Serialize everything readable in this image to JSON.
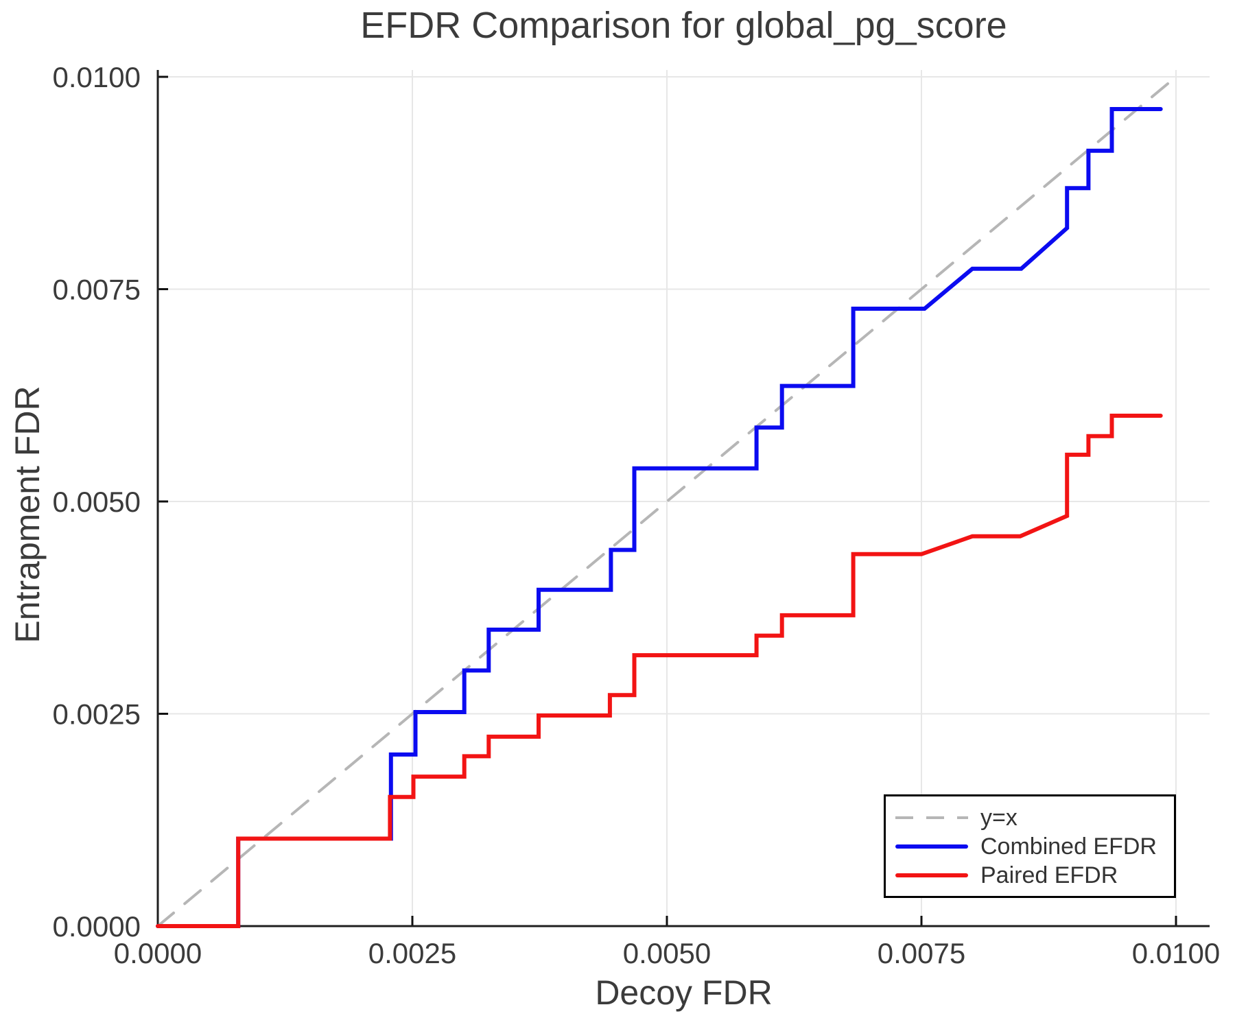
{
  "chart_data": {
    "type": "line",
    "title": "EFDR Comparison for global_pg_score",
    "xlabel": "Decoy FDR",
    "ylabel": "Entrapment FDR",
    "xlim": [
      0,
      0.01033
    ],
    "ylim": [
      0,
      0.01011
    ],
    "xticks": [
      0.0,
      0.0025,
      0.005,
      0.0075,
      0.01
    ],
    "yticks": [
      0.0,
      0.0025,
      0.005,
      0.0075,
      0.01
    ],
    "xtick_labels": [
      "0.0000",
      "0.0025",
      "0.0050",
      "0.0075",
      "0.0100"
    ],
    "ytick_labels": [
      "0.0000",
      "0.0025",
      "0.0050",
      "0.0075",
      "0.0100"
    ],
    "grid": true,
    "legend_position": "bottom-right",
    "colors": {
      "grid": "#e7e7e7",
      "spine": "#1f1f1f",
      "tick": "#111111",
      "text": "#3b3b3b"
    },
    "series": [
      {
        "name": "y=x",
        "role": "reference-line",
        "line_style": "dashed",
        "color": "#b6b6b6",
        "width": 4,
        "points": [
          [
            0,
            0
          ],
          [
            0.01,
            0.01
          ]
        ]
      },
      {
        "name": "Combined EFDR",
        "role": "data",
        "line_style": "solid",
        "color": "#0b0bf0",
        "width": 6,
        "points": [
          [
            0,
            0
          ],
          [
            0.00079,
            0
          ],
          [
            0.00079,
            0.00103
          ],
          [
            0.00229,
            0.00103
          ],
          [
            0.00229,
            0.00202
          ],
          [
            0.00253,
            0.00202
          ],
          [
            0.00253,
            0.00252
          ],
          [
            0.00301,
            0.00252
          ],
          [
            0.00301,
            0.00301
          ],
          [
            0.00325,
            0.00301
          ],
          [
            0.00325,
            0.00349
          ],
          [
            0.00374,
            0.00349
          ],
          [
            0.00374,
            0.00396
          ],
          [
            0.00445,
            0.00396
          ],
          [
            0.00445,
            0.00443
          ],
          [
            0.00468,
            0.00443
          ],
          [
            0.00468,
            0.00539
          ],
          [
            0.00588,
            0.00539
          ],
          [
            0.00588,
            0.00587
          ],
          [
            0.00613,
            0.00587
          ],
          [
            0.00613,
            0.00636
          ],
          [
            0.00683,
            0.00636
          ],
          [
            0.00683,
            0.00727
          ],
          [
            0.00753,
            0.00727
          ],
          [
            0.008,
            0.00774
          ],
          [
            0.00848,
            0.00774
          ],
          [
            0.00893,
            0.00822
          ],
          [
            0.00893,
            0.00869
          ],
          [
            0.00914,
            0.00869
          ],
          [
            0.00914,
            0.00913
          ],
          [
            0.00937,
            0.00913
          ],
          [
            0.00937,
            0.00962
          ],
          [
            0.00985,
            0.00962
          ]
        ]
      },
      {
        "name": "Paired EFDR",
        "role": "data",
        "line_style": "solid",
        "color": "#f21414",
        "width": 6,
        "points": [
          [
            0,
            0
          ],
          [
            0.00079,
            0
          ],
          [
            0.00079,
            0.00103
          ],
          [
            0.00228,
            0.00103
          ],
          [
            0.00228,
            0.00152
          ],
          [
            0.00251,
            0.00152
          ],
          [
            0.00251,
            0.00176
          ],
          [
            0.00301,
            0.00176
          ],
          [
            0.00301,
            0.002
          ],
          [
            0.00325,
            0.002
          ],
          [
            0.00325,
            0.00223
          ],
          [
            0.00374,
            0.00223
          ],
          [
            0.00374,
            0.00248
          ],
          [
            0.00444,
            0.00248
          ],
          [
            0.00444,
            0.00272
          ],
          [
            0.00468,
            0.00272
          ],
          [
            0.00468,
            0.00319
          ],
          [
            0.00588,
            0.00319
          ],
          [
            0.00588,
            0.00342
          ],
          [
            0.00613,
            0.00342
          ],
          [
            0.00613,
            0.00366
          ],
          [
            0.00683,
            0.00366
          ],
          [
            0.00683,
            0.00438
          ],
          [
            0.0075,
            0.00438
          ],
          [
            0.008,
            0.00459
          ],
          [
            0.00847,
            0.00459
          ],
          [
            0.00893,
            0.00483
          ],
          [
            0.00893,
            0.00555
          ],
          [
            0.00914,
            0.00555
          ],
          [
            0.00914,
            0.00577
          ],
          [
            0.00937,
            0.00577
          ],
          [
            0.00937,
            0.00601
          ],
          [
            0.00985,
            0.00601
          ]
        ]
      }
    ]
  }
}
